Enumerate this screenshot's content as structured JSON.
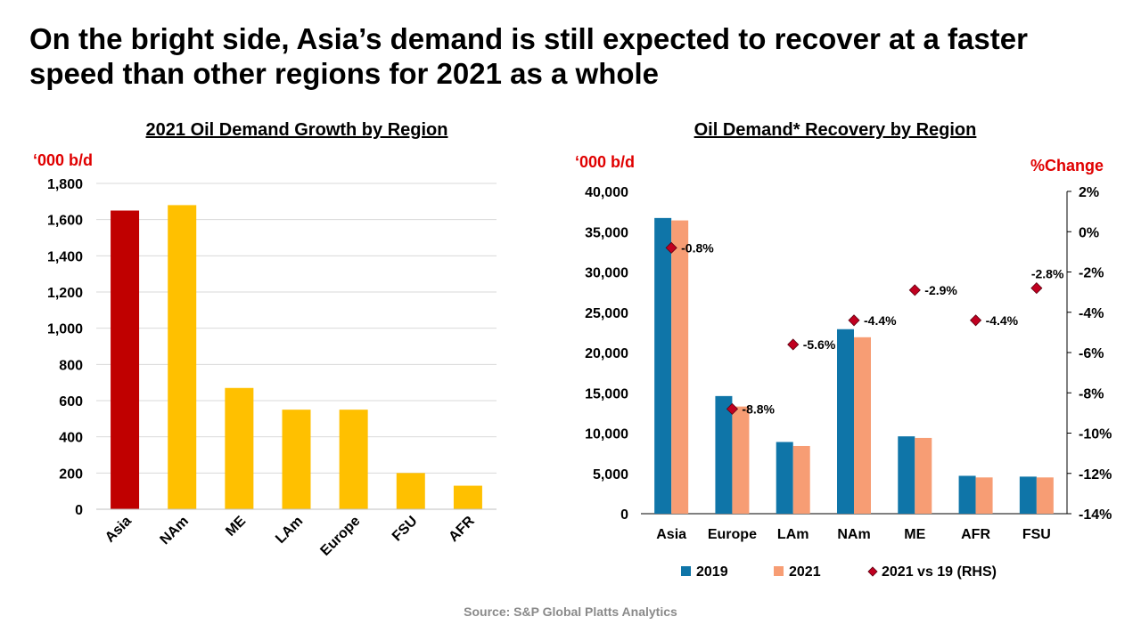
{
  "headline": "On the bright side, Asia’s demand is still expected to recover at a faster speed than other regions for 2021 as a whole",
  "source": "Source: S&P Global Platts Analytics",
  "colors": {
    "asia": "#c00000",
    "other": "#ffc000",
    "y2019": "#0f75a8",
    "y2021": "#f79d74",
    "marker": "#c00020",
    "unit": "#e00000",
    "grid": "#d9d9d9"
  },
  "chart_data": [
    {
      "type": "bar",
      "title": "2021 Oil Demand Growth by Region",
      "ylabel": "‘000 b/d",
      "categories": [
        "Asia",
        "NAm",
        "ME",
        "LAm",
        "Europe",
        "FSU",
        "AFR"
      ],
      "values": [
        1650,
        1680,
        670,
        550,
        550,
        200,
        130
      ],
      "bar_colors": [
        "#c00000",
        "#ffc000",
        "#ffc000",
        "#ffc000",
        "#ffc000",
        "#ffc000",
        "#ffc000"
      ],
      "ylim": [
        0,
        1800
      ],
      "yticks": [
        "0",
        "200",
        "400",
        "600",
        "800",
        "1,000",
        "1,200",
        "1,400",
        "1,600",
        "1,800"
      ],
      "grid": true
    },
    {
      "type": "bar",
      "title": "Oil Demand* Recovery by Region",
      "ylabel": "‘000 b/d",
      "ylabel_right": "%Change",
      "categories": [
        "Asia",
        "Europe",
        "LAm",
        "NAm",
        "ME",
        "AFR",
        "FSU"
      ],
      "series": [
        {
          "name": "2019",
          "values": [
            36700,
            14600,
            8900,
            22900,
            9600,
            4700,
            4600
          ]
        },
        {
          "name": "2021",
          "values": [
            36400,
            13300,
            8400,
            21900,
            9400,
            4500,
            4500
          ]
        },
        {
          "name": "2021 vs 19 (RHS)",
          "type": "scatter",
          "axis": "right",
          "values": [
            -0.8,
            -8.8,
            -5.6,
            -4.4,
            -2.9,
            -4.4,
            -2.8
          ],
          "labels": [
            "-0.8%",
            "-8.8%",
            "-5.6%",
            "-4.4%",
            "-2.9%",
            "-4.4%",
            "-2.8%"
          ]
        }
      ],
      "ylim": [
        0,
        40000
      ],
      "ylim_right": [
        -14,
        2
      ],
      "yticks": [
        "0",
        "5,000",
        "10,000",
        "15,000",
        "20,000",
        "25,000",
        "30,000",
        "35,000",
        "40,000"
      ],
      "yticks_right": [
        "-14%",
        "-12%",
        "-10%",
        "-8%",
        "-6%",
        "-4%",
        "-2%",
        "0%",
        "2%"
      ],
      "legend_position": "bottom",
      "grid": false
    }
  ]
}
